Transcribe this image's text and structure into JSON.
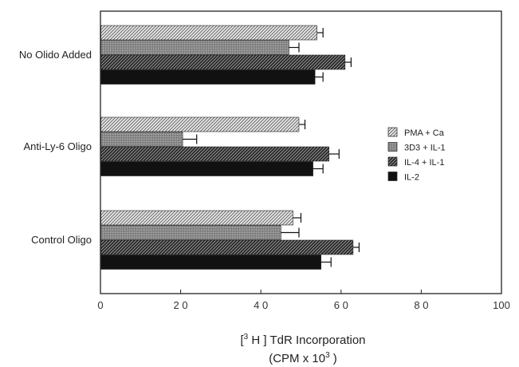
{
  "chart_data": {
    "type": "bar",
    "orientation": "horizontal",
    "categories": [
      "No Olido Added",
      "Anti-Ly-6 Oligo",
      "Control Oligo"
    ],
    "series": [
      {
        "name": "PMA  + Ca",
        "values": [
          54,
          49.5,
          48
        ],
        "errors": [
          1.5,
          1.5,
          2
        ],
        "pattern": "light-hatch"
      },
      {
        "name": "3D3 + IL-1",
        "values": [
          47,
          20.5,
          45
        ],
        "errors": [
          2.5,
          3.5,
          4.5
        ],
        "pattern": "gray-stipple"
      },
      {
        "name": "IL-4 + IL-1",
        "values": [
          61,
          57,
          63
        ],
        "errors": [
          1.5,
          2.5,
          1.5
        ],
        "pattern": "dark-hatch"
      },
      {
        "name": "IL-2",
        "values": [
          53.5,
          53,
          55
        ],
        "errors": [
          2,
          2.5,
          2.5
        ],
        "pattern": "solid-black"
      }
    ],
    "xlim": [
      0,
      100
    ],
    "xticks": [
      "0",
      "2 0",
      "4 0",
      "6 0",
      "8 0",
      "100"
    ],
    "xlabel": {
      "line1_pre": "[",
      "line1_sup": "3",
      "line1_post": " H ] TdR Incorporation",
      "line2_pre": "(CPM x 10",
      "line2_sup": "3",
      "line2_post": " )"
    },
    "ylabel": "",
    "title": "",
    "grid": false,
    "legend_position": "right"
  }
}
